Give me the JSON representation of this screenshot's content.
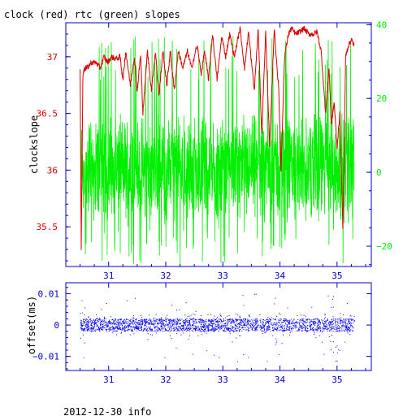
{
  "title": "clock (red) rtc (green) slopes",
  "footer": "2012-12-30 info",
  "colors": {
    "frame": "#0000cc",
    "clock": "#dd0000",
    "rtc": "#00ee00",
    "offset": "#0000ff",
    "text": "#000000"
  },
  "chart_data": [
    {
      "type": "line",
      "ylabel": "clockslope",
      "x_ticks": [
        31,
        32,
        33,
        34,
        35
      ],
      "xlim": [
        30.25,
        35.6
      ],
      "y_left_ticks": [
        {
          "value": 35.5,
          "label": "35.5"
        },
        {
          "value": 36,
          "label": "36"
        },
        {
          "value": 36.5,
          "label": "36.5"
        },
        {
          "value": 37,
          "label": "37"
        }
      ],
      "ylim_left": [
        35.15,
        37.3
      ],
      "y_right_ticks": [
        {
          "value": -20,
          "label": "−20"
        },
        {
          "value": 0,
          "label": "0"
        },
        {
          "value": 20,
          "label": "20"
        },
        {
          "value": 40,
          "label": "40"
        }
      ],
      "ylim_right": [
        -25.5,
        40.5
      ],
      "series": [
        {
          "name": "clock",
          "axis": "left",
          "x": [
            30.5,
            30.52,
            30.55,
            30.58,
            30.62,
            30.7,
            30.78,
            30.85,
            30.92,
            30.98,
            31.05,
            31.12,
            31.2,
            31.25,
            31.3,
            31.38,
            31.45,
            31.5,
            31.56,
            31.6,
            31.68,
            31.75,
            31.82,
            31.88,
            31.95,
            32.02,
            32.08,
            32.15,
            32.22,
            32.3,
            32.38,
            32.45,
            32.55,
            32.62,
            32.68,
            32.75,
            32.82,
            32.9,
            32.98,
            33.05,
            33.12,
            33.2,
            33.3,
            33.38,
            33.45,
            33.55,
            33.62,
            33.68,
            33.75,
            33.82,
            33.9,
            33.98,
            34.02,
            34.08,
            34.15,
            34.2,
            34.28,
            34.35,
            34.42,
            34.5,
            34.58,
            34.65,
            34.72,
            34.8,
            34.86,
            34.9,
            34.95,
            35.0,
            35.05,
            35.1,
            35.12,
            35.15,
            35.2,
            35.25,
            35.3
          ],
          "y": [
            36.9,
            35.3,
            36.85,
            36.9,
            36.9,
            36.95,
            36.95,
            36.9,
            37.0,
            36.95,
            37.0,
            36.98,
            37.0,
            36.8,
            37.05,
            36.75,
            37.0,
            36.7,
            37.02,
            36.5,
            37.05,
            36.7,
            37.05,
            36.65,
            37.05,
            36.75,
            37.05,
            36.7,
            37.05,
            36.9,
            37.05,
            36.9,
            37.1,
            36.85,
            37.05,
            36.8,
            37.2,
            36.8,
            37.18,
            37.0,
            37.2,
            37.0,
            37.25,
            36.9,
            37.22,
            36.7,
            37.25,
            36.3,
            37.22,
            36.2,
            37.25,
            36.7,
            36.0,
            37.0,
            37.2,
            37.25,
            37.2,
            37.22,
            37.25,
            37.2,
            37.2,
            37.22,
            37.05,
            36.5,
            36.9,
            36.4,
            36.6,
            36.2,
            36.5,
            35.5,
            36.0,
            37.0,
            37.1,
            37.15,
            37.1
          ]
        },
        {
          "name": "rtc",
          "axis": "right",
          "x_range": [
            30.52,
            35.3
          ],
          "center": 0,
          "band": [
            -10,
            12
          ],
          "extremes": [
            -25,
            37
          ]
        }
      ]
    },
    {
      "type": "scatter",
      "ylabel": "offset(ms)",
      "x_ticks": [
        31,
        32,
        33,
        34,
        35
      ],
      "xlim": [
        30.25,
        35.6
      ],
      "y_ticks": [
        {
          "value": -0.01,
          "label": "−0.01"
        },
        {
          "value": 0,
          "label": "0"
        },
        {
          "value": 0.01,
          "label": "0.01"
        }
      ],
      "ylim": [
        -0.0145,
        0.0135
      ],
      "series": [
        {
          "name": "offset",
          "x_range": [
            30.5,
            35.3
          ],
          "center": 0,
          "band": [
            -0.002,
            0.002
          ],
          "extremes": [
            -0.012,
            0.01
          ]
        }
      ]
    }
  ]
}
